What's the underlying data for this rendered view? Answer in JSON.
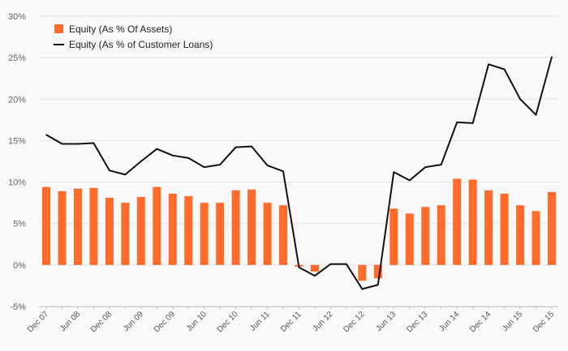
{
  "chart_data": {
    "type": "bar",
    "title": "",
    "xlabel": "",
    "ylabel": "",
    "ylim": [
      -5,
      30
    ],
    "y_ticks": [
      "-5%",
      "0%",
      "5%",
      "10%",
      "15%",
      "20%",
      "25%",
      "30%"
    ],
    "y_tick_values": [
      -5,
      0,
      5,
      10,
      15,
      20,
      25,
      30
    ],
    "grid": true,
    "legend_position": "top-left",
    "x_tick_labels": [
      "Dec 07",
      "Jun 08",
      "Dec 08",
      "Jun 09",
      "Dec 09",
      "Jun 10",
      "Dec 10",
      "Jun 11",
      "Dec 11",
      "Jun 12",
      "Dec 12",
      "Jun 13",
      "Dec 13",
      "Jun 14",
      "Dec 14",
      "Jun 15",
      "Dec 15"
    ],
    "x_tick_indices": [
      0,
      2,
      4,
      6,
      8,
      10,
      12,
      14,
      16,
      18,
      20,
      22,
      24,
      26,
      28,
      30,
      32
    ],
    "series": [
      {
        "name": "Equity (As % Of Assets)",
        "type": "bar",
        "color": "#ff6b2b",
        "values": [
          9.4,
          8.9,
          9.2,
          9.3,
          8.1,
          7.5,
          8.2,
          9.4,
          8.6,
          8.3,
          7.5,
          7.5,
          9.0,
          9.1,
          7.5,
          7.2,
          -0.2,
          -0.8,
          null,
          null,
          -1.9,
          -1.6,
          6.8,
          6.2,
          7.0,
          7.2,
          10.4,
          10.3,
          9.0,
          8.6,
          7.2,
          6.5,
          8.8
        ]
      },
      {
        "name": "Equity (As % of Customer Loans)",
        "type": "line",
        "color": "#111111",
        "values": [
          15.7,
          14.6,
          14.6,
          14.7,
          11.4,
          10.9,
          12.5,
          14.0,
          13.2,
          12.9,
          11.8,
          12.1,
          14.2,
          14.3,
          12.0,
          11.3,
          -0.3,
          -1.3,
          0.1,
          0.1,
          -2.9,
          -2.4,
          11.2,
          10.2,
          11.8,
          12.1,
          17.2,
          17.1,
          24.2,
          23.6,
          20.0,
          18.1,
          25.1
        ]
      }
    ]
  }
}
